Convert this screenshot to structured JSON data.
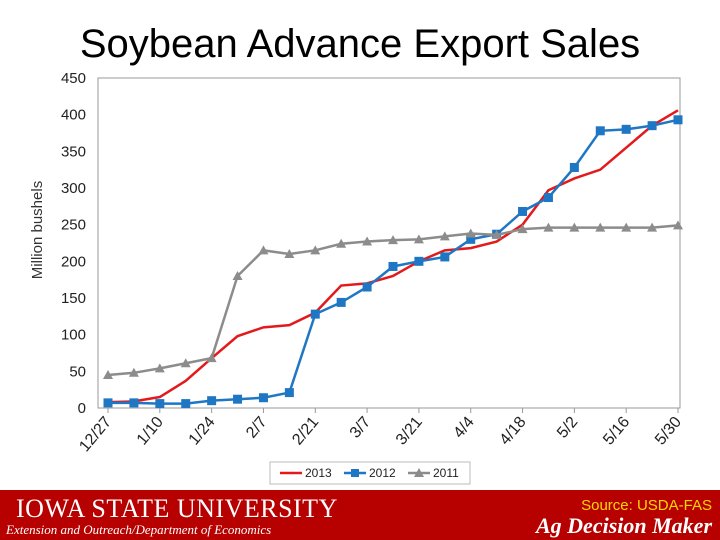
{
  "title": "Soybean Advance Export Sales",
  "footer": {
    "university": "IOWA STATE UNIVERSITY",
    "department": "Extension and Outreach/Department of Economics",
    "source": "Source: USDA-FAS",
    "brand": "Ag Decision Maker"
  },
  "chart_data": {
    "type": "line",
    "title": "Soybean Advance Export Sales",
    "ylabel": "Million bushels",
    "xlabel": "",
    "ylim": [
      0,
      450
    ],
    "yticks": [
      0,
      50,
      100,
      150,
      200,
      250,
      300,
      350,
      400,
      450
    ],
    "x_tick_labels": [
      "12/27",
      "1/10",
      "1/24",
      "2/7",
      "2/21",
      "3/7",
      "3/21",
      "4/4",
      "4/18",
      "5/2",
      "5/16",
      "5/30"
    ],
    "num_points": 23,
    "legend_position": "bottom",
    "series": [
      {
        "name": "2013",
        "color": "#e31a1c",
        "marker": "none",
        "values": [
          8,
          9,
          15,
          37,
          68,
          98,
          110,
          113,
          130,
          167,
          170,
          180,
          200,
          215,
          218,
          227,
          250,
          297,
          313,
          325,
          355,
          385,
          406
        ]
      },
      {
        "name": "2012",
        "color": "#1f77c4",
        "marker": "square",
        "values": [
          7,
          7,
          6,
          6,
          10,
          12,
          14,
          21,
          128,
          144,
          165,
          193,
          200,
          206,
          230,
          237,
          268,
          287,
          328,
          378,
          380,
          385,
          393
        ]
      },
      {
        "name": "2011",
        "color": "#8c8c8c",
        "marker": "triangle",
        "values": [
          45,
          48,
          54,
          61,
          68,
          180,
          215,
          210,
          215,
          224,
          227,
          229,
          230,
          234,
          238,
          236,
          244,
          246,
          246,
          246,
          246,
          246,
          249
        ]
      }
    ]
  }
}
